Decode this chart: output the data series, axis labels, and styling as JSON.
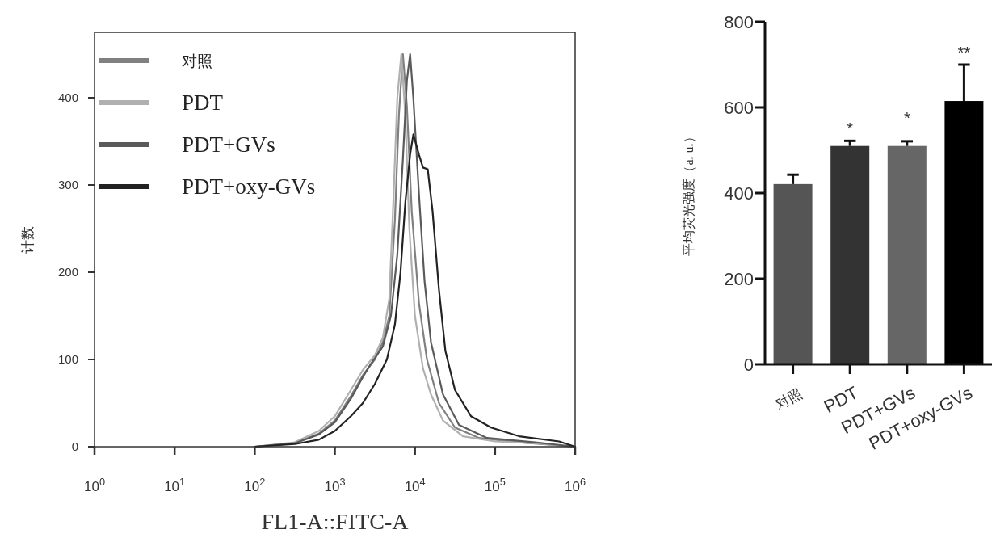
{
  "chart_data": [
    {
      "type": "line",
      "xlabel": "FL1-A::FITC-A",
      "ylabel": "计数",
      "log": "x",
      "xlim": [
        1,
        1000000
      ],
      "ylim": [
        0,
        475
      ],
      "xticks": [
        {
          "value": 1,
          "label": "10$^{0}$"
        },
        {
          "value": 10,
          "label": "10$^{1}$"
        },
        {
          "value": 100,
          "label": "10$^{2}$"
        },
        {
          "value": 1000,
          "label": "10$^{3}$"
        },
        {
          "value": 10000,
          "label": "10$^{4}$"
        },
        {
          "value": 100000,
          "label": "10$^{5}$"
        },
        {
          "value": 1000000,
          "label": "10$^{6}$"
        }
      ],
      "yticks": [
        0,
        100,
        200,
        300,
        400
      ],
      "grid": false,
      "legend": "top left",
      "marker": "none",
      "line_style": "solid",
      "series": [
        {
          "name": "对照",
          "color": "#808080",
          "x": [
            100,
            316,
            631,
            1000,
            1585,
            2239,
            3162,
            3981,
            4786,
            5623,
            6310,
            7079,
            7943,
            9120,
            11220,
            14125,
            19953,
            31623,
            63096,
            199526,
            1000000
          ],
          "values": [
            0,
            4,
            15,
            30,
            58,
            82,
            100,
            120,
            150,
            260,
            380,
            450,
            390,
            270,
            165,
            100,
            50,
            22,
            10,
            5,
            0
          ]
        },
        {
          "name": "PDT",
          "color": "#b0b0b0",
          "x": [
            100,
            316,
            631,
            1000,
            1585,
            2239,
            3162,
            3981,
            4786,
            5370,
            6026,
            6761,
            7586,
            8511,
            10000,
            12589,
            15849,
            22387,
            39811,
            100000,
            316228,
            1000000
          ],
          "values": [
            0,
            5,
            18,
            35,
            65,
            88,
            105,
            125,
            170,
            280,
            400,
            450,
            380,
            250,
            150,
            90,
            60,
            30,
            12,
            6,
            4,
            0
          ]
        },
        {
          "name": "PDT+GVs",
          "color": "#5a5a5a",
          "x": [
            100,
            316,
            631,
            1000,
            1585,
            2239,
            2818,
            3981,
            5012,
            6026,
            7079,
            7943,
            8710,
            9550,
            11220,
            13183,
            15849,
            22387,
            35481,
            79433,
            316228,
            1000000
          ],
          "values": [
            0,
            4,
            14,
            28,
            55,
            80,
            95,
            115,
            150,
            220,
            330,
            420,
            450,
            400,
            290,
            190,
            120,
            60,
            25,
            10,
            5,
            0
          ]
        },
        {
          "name": "PDT+oxy-GVs",
          "color": "#222222",
          "x": [
            100,
            316,
            631,
            1000,
            1585,
            2239,
            3162,
            4467,
            5623,
            6607,
            7586,
            8710,
            9550,
            11220,
            12589,
            14454,
            16596,
            19953,
            23988,
            31623,
            50119,
            89125,
            199526,
            630957,
            1000000
          ],
          "values": [
            0,
            3,
            8,
            18,
            35,
            50,
            72,
            100,
            140,
            200,
            280,
            335,
            358,
            335,
            320,
            318,
            270,
            180,
            110,
            65,
            35,
            22,
            12,
            6,
            0
          ]
        }
      ]
    },
    {
      "type": "bar",
      "ylabel": "平均荧光强度（a. u.）",
      "categories": [
        "对照",
        "PDT",
        "PDT+GVs",
        "PDT+oxy-GVs"
      ],
      "values": [
        421,
        510,
        510,
        615
      ],
      "colors": [
        "#555555",
        "#333333",
        "#666666",
        "#000000"
      ],
      "errors": [
        [
          421,
          443
        ],
        [
          510,
          522
        ],
        [
          510,
          521
        ],
        [
          615,
          700
        ]
      ],
      "ylim": [
        0,
        800
      ],
      "yticks": [
        0,
        200,
        400,
        600,
        800
      ],
      "grid": false,
      "annotations": [
        {
          "text": "*",
          "x": "PDT",
          "y": 522
        },
        {
          "text": "*",
          "x": "PDT+GVs",
          "y": 521
        },
        {
          "text": "**",
          "x": "PDT+oxy-GVs",
          "y": 700
        }
      ]
    }
  ]
}
